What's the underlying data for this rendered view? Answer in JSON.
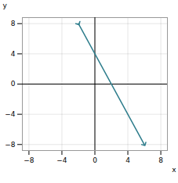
{
  "chart_data": {
    "type": "line",
    "x": [
      -2,
      6
    ],
    "values": [
      8,
      -8
    ],
    "color": "#2E7D8C",
    "marker": "arrow",
    "xlabel": "x",
    "ylabel": "y",
    "xlim": [
      -8.8,
      8.8
    ],
    "ylim": [
      -8.8,
      8.8
    ],
    "xticks": [
      -8,
      -4,
      0,
      4,
      8
    ],
    "yticks": [
      -8,
      -4,
      0,
      4,
      8
    ],
    "grid": true
  }
}
